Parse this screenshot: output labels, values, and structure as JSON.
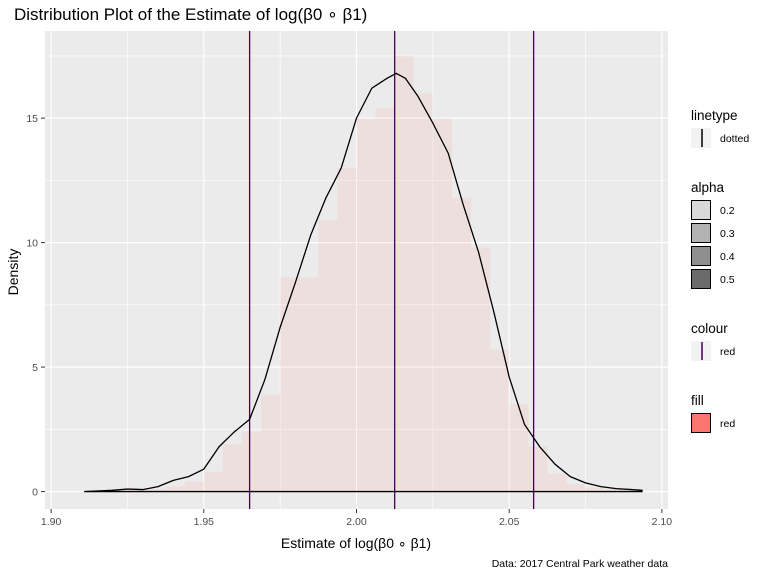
{
  "chart_data": {
    "type": "histogram",
    "title": "Distribution Plot of the Estimate of log(β0 ∘ β1)",
    "xlabel": "Estimate of log(β0 ∘ β1)",
    "ylabel": "Density",
    "caption": "Data: 2017 Central Park weather data",
    "xlim": [
      1.898,
      2.102
    ],
    "ylim": [
      -0.7,
      18.5
    ],
    "x_ticks": [
      1.9,
      1.95,
      2.0,
      2.05,
      2.1
    ],
    "x_tick_labels": [
      "1.90",
      "1.95",
      "2.00",
      "2.05",
      "2.10"
    ],
    "y_ticks": [
      0,
      5,
      10,
      15
    ],
    "y_tick_labels": [
      "0",
      "5",
      "10",
      "15"
    ],
    "grid": true,
    "legend_position": "right",
    "histogram": {
      "fill_color": "#f8766d",
      "alpha": 0.1,
      "bin_width": 0.00625,
      "bins": [
        {
          "start": 1.9125,
          "end": 1.91875,
          "density": 0.05
        },
        {
          "start": 1.91875,
          "end": 1.925,
          "density": 0.05
        },
        {
          "start": 1.925,
          "end": 1.93125,
          "density": 0.1
        },
        {
          "start": 1.93125,
          "end": 1.9375,
          "density": 0.1
        },
        {
          "start": 1.9375,
          "end": 1.94375,
          "density": 0.2
        },
        {
          "start": 1.94375,
          "end": 1.95,
          "density": 0.4
        },
        {
          "start": 1.95,
          "end": 1.95625,
          "density": 0.8
        },
        {
          "start": 1.95625,
          "end": 1.9625,
          "density": 1.9
        },
        {
          "start": 1.9625,
          "end": 1.96875,
          "density": 2.4
        },
        {
          "start": 1.96875,
          "end": 1.975,
          "density": 3.9
        },
        {
          "start": 1.975,
          "end": 1.98125,
          "density": 8.6
        },
        {
          "start": 1.98125,
          "end": 1.9875,
          "density": 8.6
        },
        {
          "start": 1.9875,
          "end": 1.99375,
          "density": 10.9
        },
        {
          "start": 1.99375,
          "end": 2.0,
          "density": 13.0
        },
        {
          "start": 2.0,
          "end": 2.00625,
          "density": 15.0
        },
        {
          "start": 2.00625,
          "end": 2.0125,
          "density": 15.4
        },
        {
          "start": 2.0125,
          "end": 2.01875,
          "density": 17.5
        },
        {
          "start": 2.01875,
          "end": 2.025,
          "density": 16.0
        },
        {
          "start": 2.025,
          "end": 2.03125,
          "density": 15.0
        },
        {
          "start": 2.03125,
          "end": 2.0375,
          "density": 11.8
        },
        {
          "start": 2.0375,
          "end": 2.04375,
          "density": 9.8
        },
        {
          "start": 2.04375,
          "end": 2.05,
          "density": 5.7
        },
        {
          "start": 2.05,
          "end": 2.05625,
          "density": 3.5
        },
        {
          "start": 2.05625,
          "end": 2.0625,
          "density": 1.8
        },
        {
          "start": 2.0625,
          "end": 2.06875,
          "density": 0.7
        },
        {
          "start": 2.06875,
          "end": 2.075,
          "density": 0.3
        },
        {
          "start": 2.075,
          "end": 2.08125,
          "density": 0.15
        },
        {
          "start": 2.08125,
          "end": 2.0875,
          "density": 0.1
        },
        {
          "start": 2.0875,
          "end": 2.09375,
          "density": 0.05
        }
      ]
    },
    "density_curve": {
      "color": "#000000",
      "x": [
        1.911,
        1.915,
        1.92,
        1.925,
        1.93,
        1.935,
        1.94,
        1.945,
        1.95,
        1.955,
        1.96,
        1.965,
        1.97,
        1.975,
        1.98,
        1.985,
        1.99,
        1.995,
        2.0,
        2.005,
        2.01,
        2.013,
        2.016,
        2.02,
        2.025,
        2.03,
        2.035,
        2.04,
        2.045,
        2.05,
        2.055,
        2.06,
        2.065,
        2.07,
        2.075,
        2.08,
        2.085,
        2.09,
        2.0935
      ],
      "y": [
        0.0,
        0.02,
        0.05,
        0.1,
        0.08,
        0.2,
        0.45,
        0.6,
        0.9,
        1.8,
        2.4,
        2.9,
        4.5,
        6.6,
        8.4,
        10.3,
        11.8,
        13.0,
        15.0,
        16.2,
        16.6,
        16.8,
        16.6,
        15.9,
        14.8,
        13.6,
        11.5,
        9.6,
        7.2,
        4.6,
        2.7,
        1.8,
        1.1,
        0.6,
        0.35,
        0.2,
        0.12,
        0.08,
        0.05
      ]
    },
    "vertical_lines": [
      {
        "x": 1.965,
        "color": "#440154"
      },
      {
        "x": 2.0125,
        "color": "#440154"
      },
      {
        "x": 2.058,
        "color": "#440154"
      }
    ],
    "legends": [
      {
        "title": "linetype",
        "items": [
          {
            "label": "dotted",
            "kind": "vline"
          }
        ]
      },
      {
        "title": "alpha",
        "items": [
          {
            "label": "0.2",
            "kind": "box",
            "fill": "#d9d9d9"
          },
          {
            "label": "0.3",
            "kind": "box",
            "fill": "#b3b3b3"
          },
          {
            "label": "0.4",
            "kind": "box",
            "fill": "#8f8f8f"
          },
          {
            "label": "0.5",
            "kind": "box",
            "fill": "#6b6b6b"
          }
        ]
      },
      {
        "title": "colour",
        "items": [
          {
            "label": "red",
            "kind": "vline-color",
            "color": "#440154"
          }
        ]
      },
      {
        "title": "fill",
        "items": [
          {
            "label": "red",
            "kind": "box",
            "fill": "#f8766d"
          }
        ]
      }
    ]
  }
}
